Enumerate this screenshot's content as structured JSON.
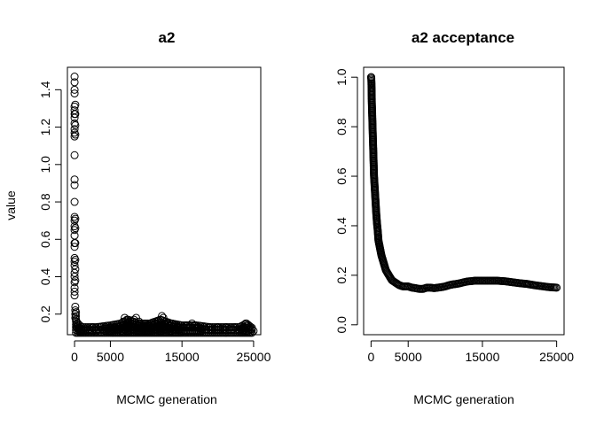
{
  "chart_data": [
    {
      "type": "scatter",
      "title": "a2",
      "xlabel": "MCMC generation",
      "ylabel": "value",
      "xlim": [
        -1000,
        26000
      ],
      "ylim": [
        0.09,
        1.52
      ],
      "xticks": [
        0,
        5000,
        15000,
        25000
      ],
      "xtick_labels": [
        "0",
        "5000",
        "15000",
        "25000"
      ],
      "yticks": [
        0.2,
        0.4,
        0.6,
        0.8,
        1.0,
        1.2,
        1.4
      ],
      "ytick_labels": [
        "0.2",
        "0.4",
        "0.6",
        "0.8",
        "1.0",
        "1.2",
        "1.4"
      ],
      "grid": false,
      "marker": "open-circle",
      "series": [
        {
          "points": [
            [
              0,
              1.47
            ],
            [
              0,
              1.44
            ],
            [
              0,
              1.4
            ],
            [
              0,
              1.38
            ],
            [
              0,
              1.31
            ],
            [
              0,
              1.29
            ],
            [
              0,
              1.27
            ],
            [
              0,
              1.25
            ],
            [
              0,
              1.22
            ],
            [
              0,
              1.19
            ],
            [
              0,
              1.17
            ],
            [
              0,
              1.15
            ],
            [
              0,
              1.05
            ],
            [
              0,
              0.92
            ],
            [
              0,
              0.89
            ],
            [
              0,
              0.8
            ],
            [
              0,
              0.72
            ],
            [
              0,
              0.7
            ],
            [
              0,
              0.67
            ],
            [
              0,
              0.65
            ],
            [
              0,
              0.62
            ],
            [
              0,
              0.58
            ],
            [
              0,
              0.56
            ],
            [
              0,
              0.5
            ],
            [
              0,
              0.48
            ],
            [
              0,
              0.46
            ],
            [
              0,
              0.42
            ],
            [
              0,
              0.4
            ],
            [
              0,
              0.37
            ],
            [
              0,
              0.34
            ],
            [
              0,
              0.32
            ],
            [
              0,
              0.3
            ],
            [
              100,
              1.32
            ],
            [
              100,
              1.27
            ],
            [
              100,
              1.21
            ],
            [
              100,
              1.16
            ],
            [
              100,
              0.71
            ],
            [
              100,
              0.66
            ],
            [
              100,
              0.58
            ],
            [
              100,
              0.49
            ],
            [
              100,
              0.44
            ],
            [
              100,
              0.38
            ],
            [
              100,
              0.24
            ],
            [
              100,
              0.22
            ],
            [
              100,
              0.2
            ],
            [
              100,
              0.18
            ],
            [
              200,
              0.21
            ],
            [
              200,
              0.19
            ],
            [
              200,
              0.17
            ],
            [
              250,
              0.16
            ],
            [
              300,
              0.15
            ],
            [
              300,
              0.13
            ],
            [
              400,
              0.14
            ],
            [
              500,
              0.12
            ],
            [
              600,
              0.13
            ],
            [
              700,
              0.12
            ],
            [
              800,
              0.11
            ],
            [
              900,
              0.12
            ],
            [
              1000,
              0.11
            ],
            [
              1200,
              0.12
            ],
            [
              1400,
              0.11
            ],
            [
              1600,
              0.12
            ],
            [
              1800,
              0.11
            ],
            [
              2000,
              0.12
            ],
            [
              2200,
              0.11
            ],
            [
              2500,
              0.13
            ],
            [
              2800,
              0.12
            ],
            [
              3000,
              0.11
            ],
            [
              3300,
              0.12
            ],
            [
              3600,
              0.13
            ],
            [
              4000,
              0.12
            ],
            [
              4300,
              0.13
            ],
            [
              4600,
              0.12
            ],
            [
              5000,
              0.13
            ],
            [
              5300,
              0.12
            ],
            [
              5600,
              0.13
            ],
            [
              6000,
              0.12
            ],
            [
              6400,
              0.14
            ],
            [
              6800,
              0.16
            ],
            [
              7000,
              0.18
            ],
            [
              7300,
              0.17
            ],
            [
              7600,
              0.15
            ],
            [
              8000,
              0.16
            ],
            [
              8300,
              0.17
            ],
            [
              8600,
              0.18
            ],
            [
              9000,
              0.16
            ],
            [
              9300,
              0.13
            ],
            [
              9600,
              0.12
            ],
            [
              10000,
              0.13
            ],
            [
              10300,
              0.14
            ],
            [
              10600,
              0.15
            ],
            [
              11000,
              0.14
            ],
            [
              11300,
              0.15
            ],
            [
              11600,
              0.16
            ],
            [
              12000,
              0.17
            ],
            [
              12200,
              0.19
            ],
            [
              12400,
              0.18
            ],
            [
              12700,
              0.16
            ],
            [
              13000,
              0.15
            ],
            [
              13300,
              0.14
            ],
            [
              13600,
              0.15
            ],
            [
              14000,
              0.14
            ],
            [
              14400,
              0.13
            ],
            [
              14800,
              0.14
            ],
            [
              15200,
              0.13
            ],
            [
              15600,
              0.14
            ],
            [
              16000,
              0.13
            ],
            [
              16400,
              0.15
            ],
            [
              16800,
              0.14
            ],
            [
              17200,
              0.13
            ],
            [
              17600,
              0.12
            ],
            [
              18000,
              0.13
            ],
            [
              18400,
              0.12
            ],
            [
              18800,
              0.13
            ],
            [
              19200,
              0.12
            ],
            [
              19600,
              0.12
            ],
            [
              20000,
              0.13
            ],
            [
              20400,
              0.12
            ],
            [
              20800,
              0.12
            ],
            [
              21200,
              0.13
            ],
            [
              21600,
              0.12
            ],
            [
              22000,
              0.12
            ],
            [
              22400,
              0.13
            ],
            [
              22800,
              0.12
            ],
            [
              23200,
              0.12
            ],
            [
              23600,
              0.13
            ],
            [
              23900,
              0.15
            ],
            [
              24100,
              0.14
            ],
            [
              24400,
              0.13
            ],
            [
              24700,
              0.12
            ],
            [
              25000,
              0.11
            ]
          ],
          "band": [
            [
              200,
              0.1,
              0.16
            ],
            [
              1000,
              0.1,
              0.13
            ],
            [
              3000,
              0.1,
              0.13
            ],
            [
              5000,
              0.1,
              0.14
            ],
            [
              6500,
              0.1,
              0.15
            ],
            [
              7500,
              0.1,
              0.17
            ],
            [
              9000,
              0.1,
              0.15
            ],
            [
              10500,
              0.1,
              0.15
            ],
            [
              12000,
              0.1,
              0.17
            ],
            [
              13500,
              0.1,
              0.15
            ],
            [
              15000,
              0.1,
              0.14
            ],
            [
              17000,
              0.1,
              0.14
            ],
            [
              19000,
              0.1,
              0.13
            ],
            [
              21000,
              0.1,
              0.13
            ],
            [
              23000,
              0.1,
              0.13
            ],
            [
              24000,
              0.1,
              0.15
            ],
            [
              25000,
              0.1,
              0.12
            ]
          ]
        }
      ]
    },
    {
      "type": "line",
      "title": "a2 acceptance",
      "xlabel": "MCMC generation",
      "ylabel": "",
      "xlim": [
        -1000,
        26000
      ],
      "ylim": [
        -0.04,
        1.04
      ],
      "xticks": [
        0,
        5000,
        15000,
        25000
      ],
      "xtick_labels": [
        "0",
        "5000",
        "15000",
        "25000"
      ],
      "yticks": [
        0.0,
        0.2,
        0.4,
        0.6,
        0.8,
        1.0
      ],
      "ytick_labels": [
        "0.0",
        "0.2",
        "0.4",
        "0.6",
        "0.8",
        "1.0"
      ],
      "grid": false,
      "marker": "open-circle",
      "series": [
        {
          "points": [
            [
              0,
              1.0
            ],
            [
              25,
              1.0
            ],
            [
              50,
              0.98
            ],
            [
              75,
              0.95
            ],
            [
              100,
              0.9
            ],
            [
              150,
              0.85
            ],
            [
              200,
              0.8
            ],
            [
              250,
              0.75
            ],
            [
              300,
              0.7
            ],
            [
              350,
              0.65
            ],
            [
              400,
              0.6
            ],
            [
              500,
              0.55
            ],
            [
              600,
              0.5
            ],
            [
              700,
              0.45
            ],
            [
              800,
              0.41
            ],
            [
              900,
              0.38
            ],
            [
              1000,
              0.34
            ],
            [
              1200,
              0.31
            ],
            [
              1400,
              0.28
            ],
            [
              1700,
              0.25
            ],
            [
              2000,
              0.22
            ],
            [
              2400,
              0.2
            ],
            [
              2800,
              0.18
            ],
            [
              3300,
              0.17
            ],
            [
              3800,
              0.16
            ],
            [
              4300,
              0.155
            ],
            [
              5000,
              0.155
            ],
            [
              5500,
              0.15
            ],
            [
              6000,
              0.148
            ],
            [
              6500,
              0.145
            ],
            [
              7000,
              0.145
            ],
            [
              7500,
              0.15
            ],
            [
              8000,
              0.15
            ],
            [
              8500,
              0.148
            ],
            [
              9000,
              0.15
            ],
            [
              9500,
              0.152
            ],
            [
              10000,
              0.155
            ],
            [
              10500,
              0.16
            ],
            [
              11000,
              0.163
            ],
            [
              11500,
              0.165
            ],
            [
              12000,
              0.168
            ],
            [
              12500,
              0.172
            ],
            [
              13000,
              0.175
            ],
            [
              14000,
              0.178
            ],
            [
              15000,
              0.178
            ],
            [
              16000,
              0.178
            ],
            [
              17000,
              0.178
            ],
            [
              18000,
              0.176
            ],
            [
              19000,
              0.172
            ],
            [
              20000,
              0.168
            ],
            [
              21000,
              0.165
            ],
            [
              22000,
              0.16
            ],
            [
              23000,
              0.156
            ],
            [
              24000,
              0.152
            ],
            [
              25000,
              0.15
            ]
          ]
        }
      ]
    }
  ]
}
